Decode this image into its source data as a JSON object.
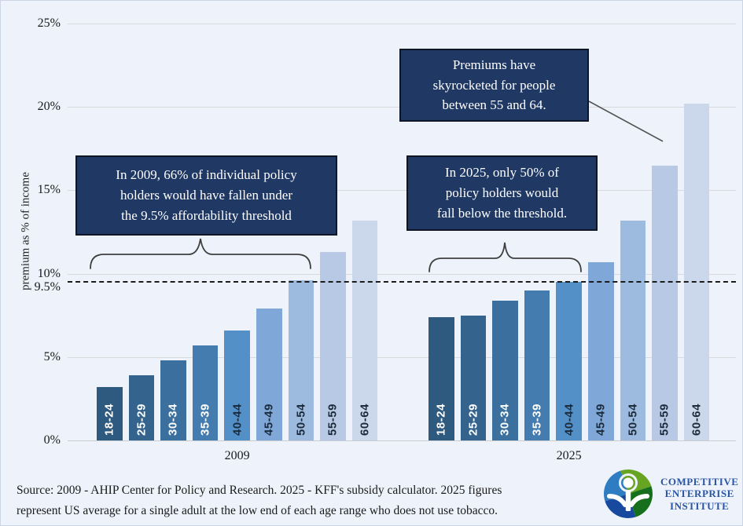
{
  "chart_data": {
    "type": "bar",
    "title": "",
    "xlabel": "",
    "ylabel": "premium as % of income",
    "ylim": [
      0,
      25
    ],
    "grid": true,
    "legend": false,
    "yticks": [
      {
        "value": 0,
        "label": "0%"
      },
      {
        "value": 5,
        "label": "5%"
      },
      {
        "value": 10,
        "label": "10%"
      },
      {
        "value": 15,
        "label": "15%"
      },
      {
        "value": 20,
        "label": "20%"
      },
      {
        "value": 25,
        "label": "25%"
      }
    ],
    "threshold": {
      "value": 9.5,
      "label": "9.5%",
      "style": "dashed"
    },
    "categories": [
      "18-24",
      "25-29",
      "30-34",
      "35-39",
      "40-44",
      "45-49",
      "50-54",
      "55-59",
      "60-64"
    ],
    "category_colors": [
      "#2F5A80",
      "#34638D",
      "#3A6F9E",
      "#457CB0",
      "#5490C8",
      "#7FA8D8",
      "#9DBADF",
      "#B7C9E5",
      "#CBD7EA"
    ],
    "category_label_colors": [
      "#FFFFFF",
      "#FFFFFF",
      "#FFFFFF",
      "#FFFFFF",
      "#1C2B3C",
      "#1C2B3C",
      "#1C2B3C",
      "#1C2B3C",
      "#1C2B3C"
    ],
    "series": [
      {
        "name": "2009",
        "values": [
          3.2,
          3.9,
          4.8,
          5.7,
          6.6,
          7.9,
          9.6,
          11.3,
          13.2
        ]
      },
      {
        "name": "2025",
        "values": [
          7.4,
          7.5,
          8.4,
          9.0,
          9.5,
          10.7,
          13.2,
          16.5,
          20.2
        ]
      }
    ]
  },
  "annotations": {
    "box_2009": {
      "lines": [
        "In 2009, 66% of individual policy",
        "holders would have fallen under",
        "the 9.5% affordability threshold"
      ],
      "bg": "#1F3864"
    },
    "box_2025": {
      "lines": [
        "In 2025, only 50% of",
        "policy holders would",
        "fall below the threshold."
      ],
      "bg": "#1F3864"
    },
    "box_skyrocket": {
      "lines": [
        "Premiums have",
        "skyrocketed for people",
        "between 55 and 64."
      ],
      "bg": "#1F3864"
    }
  },
  "source": {
    "lines": [
      "Source: 2009 - AHIP Center for Policy and Research. 2025 - KFF's subsidy calculator. 2025 figures",
      "represent US average for a single adult at the low end of each age range who does not use tobacco."
    ]
  },
  "logo": {
    "lines": [
      "COMPETITIVE",
      "ENTERPRISE",
      "INSTITUTE"
    ],
    "text_color": "#2A55A5",
    "colors": {
      "blue_light": "#2E7CC2",
      "blue_dark": "#17499E",
      "green_light": "#66A422",
      "green_dark": "#166F1C"
    }
  }
}
